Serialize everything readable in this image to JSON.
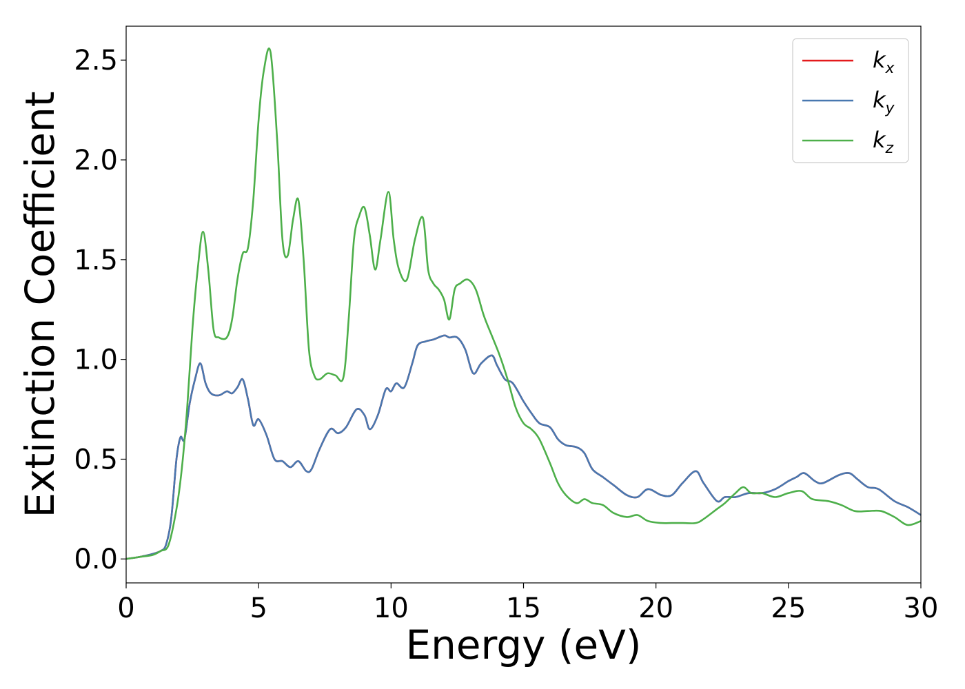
{
  "chart_data": {
    "type": "line",
    "title": "",
    "xlabel": "Energy (eV)",
    "ylabel": "Extinction Coefficient",
    "xlim": [
      0,
      30
    ],
    "ylim": [
      -0.12,
      2.67
    ],
    "xticks": [
      "0",
      "5",
      "10",
      "15",
      "20",
      "25",
      "30"
    ],
    "yticks": [
      "0.0",
      "0.5",
      "1.0",
      "1.5",
      "2.0",
      "2.5"
    ],
    "grid": false,
    "legend_position": "top-right",
    "series": [
      {
        "name": "k_x",
        "legend_base": "k",
        "legend_sub": "x",
        "color": "#e41a1c",
        "x": [
          0,
          0.5,
          1,
          1.3,
          1.5,
          1.7,
          1.9,
          2.05,
          2.2,
          2.4,
          2.6,
          2.8,
          3.0,
          3.2,
          3.5,
          3.8,
          4.0,
          4.2,
          4.4,
          4.6,
          4.8,
          5.0,
          5.3,
          5.6,
          5.9,
          6.2,
          6.5,
          6.8,
          7.0,
          7.3,
          7.7,
          8.0,
          8.3,
          8.7,
          9.0,
          9.2,
          9.5,
          9.8,
          10.0,
          10.2,
          10.5,
          10.8,
          11.0,
          11.3,
          11.6,
          12.0,
          12.2,
          12.5,
          12.8,
          13.1,
          13.4,
          13.8,
          14.0,
          14.3,
          14.6,
          15.0,
          15.3,
          15.6,
          16.0,
          16.3,
          16.6,
          17.0,
          17.3,
          17.6,
          18.0,
          18.4,
          18.9,
          19.3,
          19.7,
          20.2,
          20.6,
          21.0,
          21.5,
          21.8,
          22.3,
          22.6,
          23.0,
          23.5,
          24.0,
          24.5,
          25.0,
          25.3,
          25.6,
          26.0,
          26.3,
          26.9,
          27.3,
          27.6,
          28.0,
          28.4,
          29.0,
          29.5,
          30.0
        ],
        "values": [
          0,
          0.01,
          0.025,
          0.04,
          0.07,
          0.2,
          0.5,
          0.61,
          0.6,
          0.78,
          0.9,
          0.98,
          0.88,
          0.83,
          0.82,
          0.84,
          0.83,
          0.86,
          0.9,
          0.8,
          0.67,
          0.7,
          0.62,
          0.5,
          0.49,
          0.46,
          0.49,
          0.44,
          0.45,
          0.55,
          0.65,
          0.63,
          0.66,
          0.75,
          0.72,
          0.65,
          0.72,
          0.85,
          0.84,
          0.88,
          0.86,
          0.98,
          1.07,
          1.09,
          1.1,
          1.12,
          1.11,
          1.11,
          1.05,
          0.93,
          0.98,
          1.02,
          0.97,
          0.9,
          0.88,
          0.79,
          0.73,
          0.68,
          0.66,
          0.6,
          0.57,
          0.56,
          0.53,
          0.45,
          0.41,
          0.37,
          0.32,
          0.31,
          0.35,
          0.32,
          0.32,
          0.38,
          0.44,
          0.38,
          0.29,
          0.31,
          0.31,
          0.33,
          0.33,
          0.35,
          0.39,
          0.41,
          0.43,
          0.39,
          0.38,
          0.42,
          0.43,
          0.4,
          0.36,
          0.35,
          0.29,
          0.26,
          0.22
        ]
      },
      {
        "name": "k_y",
        "legend_base": "k",
        "legend_sub": "y",
        "color": "#4878b0",
        "x": [
          0,
          0.5,
          1,
          1.3,
          1.5,
          1.7,
          1.9,
          2.05,
          2.2,
          2.4,
          2.6,
          2.8,
          3.0,
          3.2,
          3.5,
          3.8,
          4.0,
          4.2,
          4.4,
          4.6,
          4.8,
          5.0,
          5.3,
          5.6,
          5.9,
          6.2,
          6.5,
          6.8,
          7.0,
          7.3,
          7.7,
          8.0,
          8.3,
          8.7,
          9.0,
          9.2,
          9.5,
          9.8,
          10.0,
          10.2,
          10.5,
          10.8,
          11.0,
          11.3,
          11.6,
          12.0,
          12.2,
          12.5,
          12.8,
          13.1,
          13.4,
          13.8,
          14.0,
          14.3,
          14.6,
          15.0,
          15.3,
          15.6,
          16.0,
          16.3,
          16.6,
          17.0,
          17.3,
          17.6,
          18.0,
          18.4,
          18.9,
          19.3,
          19.7,
          20.2,
          20.6,
          21.0,
          21.5,
          21.8,
          22.3,
          22.6,
          23.0,
          23.5,
          24.0,
          24.5,
          25.0,
          25.3,
          25.6,
          26.0,
          26.3,
          26.9,
          27.3,
          27.6,
          28.0,
          28.4,
          29.0,
          29.5,
          30.0
        ],
        "values": [
          0,
          0.01,
          0.025,
          0.04,
          0.07,
          0.2,
          0.5,
          0.61,
          0.6,
          0.78,
          0.9,
          0.98,
          0.88,
          0.83,
          0.82,
          0.84,
          0.83,
          0.86,
          0.9,
          0.8,
          0.67,
          0.7,
          0.62,
          0.5,
          0.49,
          0.46,
          0.49,
          0.44,
          0.45,
          0.55,
          0.65,
          0.63,
          0.66,
          0.75,
          0.72,
          0.65,
          0.72,
          0.85,
          0.84,
          0.88,
          0.86,
          0.98,
          1.07,
          1.09,
          1.1,
          1.12,
          1.11,
          1.11,
          1.05,
          0.93,
          0.98,
          1.02,
          0.97,
          0.9,
          0.88,
          0.79,
          0.73,
          0.68,
          0.66,
          0.6,
          0.57,
          0.56,
          0.53,
          0.45,
          0.41,
          0.37,
          0.32,
          0.31,
          0.35,
          0.32,
          0.32,
          0.38,
          0.44,
          0.38,
          0.29,
          0.31,
          0.31,
          0.33,
          0.33,
          0.35,
          0.39,
          0.41,
          0.43,
          0.39,
          0.38,
          0.42,
          0.43,
          0.4,
          0.36,
          0.35,
          0.29,
          0.26,
          0.22
        ]
      },
      {
        "name": "k_z",
        "legend_base": "k",
        "legend_sub": "z",
        "color": "#4daf4a",
        "x": [
          0,
          0.5,
          1,
          1.3,
          1.6,
          1.9,
          2.1,
          2.3,
          2.5,
          2.7,
          2.9,
          3.1,
          3.3,
          3.5,
          3.8,
          4.0,
          4.2,
          4.4,
          4.6,
          4.8,
          5.0,
          5.2,
          5.45,
          5.7,
          5.9,
          6.1,
          6.3,
          6.5,
          6.7,
          6.9,
          7.1,
          7.3,
          7.6,
          7.9,
          8.2,
          8.4,
          8.6,
          8.8,
          9.0,
          9.2,
          9.4,
          9.6,
          9.9,
          10.1,
          10.3,
          10.6,
          10.9,
          11.2,
          11.4,
          11.6,
          11.8,
          12.0,
          12.2,
          12.4,
          12.6,
          12.9,
          13.2,
          13.5,
          13.8,
          14.1,
          14.4,
          14.7,
          15.0,
          15.3,
          15.6,
          16.0,
          16.3,
          16.6,
          17.0,
          17.3,
          17.6,
          18.0,
          18.4,
          18.9,
          19.3,
          19.7,
          20.2,
          20.6,
          21.0,
          21.5,
          21.8,
          22.3,
          22.6,
          23.0,
          23.3,
          23.6,
          24.0,
          24.5,
          25.0,
          25.5,
          25.9,
          26.5,
          27.0,
          27.5,
          28.0,
          28.5,
          29.0,
          29.5,
          30.0
        ],
        "values": [
          0,
          0.01,
          0.02,
          0.04,
          0.07,
          0.25,
          0.45,
          0.75,
          1.15,
          1.45,
          1.64,
          1.45,
          1.15,
          1.11,
          1.11,
          1.2,
          1.4,
          1.53,
          1.56,
          1.8,
          2.2,
          2.45,
          2.54,
          2.1,
          1.6,
          1.52,
          1.7,
          1.8,
          1.5,
          1.05,
          0.92,
          0.9,
          0.93,
          0.92,
          0.91,
          1.2,
          1.6,
          1.72,
          1.76,
          1.62,
          1.45,
          1.6,
          1.84,
          1.6,
          1.45,
          1.4,
          1.6,
          1.71,
          1.45,
          1.38,
          1.35,
          1.3,
          1.2,
          1.35,
          1.38,
          1.4,
          1.35,
          1.22,
          1.12,
          1.02,
          0.9,
          0.76,
          0.68,
          0.65,
          0.6,
          0.48,
          0.38,
          0.32,
          0.28,
          0.3,
          0.28,
          0.27,
          0.23,
          0.21,
          0.22,
          0.19,
          0.18,
          0.18,
          0.18,
          0.18,
          0.2,
          0.25,
          0.28,
          0.33,
          0.36,
          0.33,
          0.33,
          0.31,
          0.33,
          0.34,
          0.3,
          0.29,
          0.27,
          0.24,
          0.24,
          0.24,
          0.21,
          0.17,
          0.19
        ]
      }
    ]
  }
}
